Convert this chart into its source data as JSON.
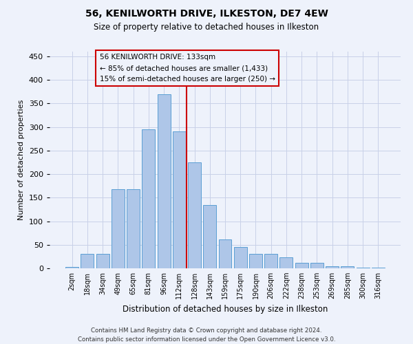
{
  "title": "56, KENILWORTH DRIVE, ILKESTON, DE7 4EW",
  "subtitle": "Size of property relative to detached houses in Ilkeston",
  "xlabel": "Distribution of detached houses by size in Ilkeston",
  "ylabel": "Number of detached properties",
  "footer_line1": "Contains HM Land Registry data © Crown copyright and database right 2024.",
  "footer_line2": "Contains public sector information licensed under the Open Government Licence v3.0.",
  "categories": [
    "2sqm",
    "18sqm",
    "34sqm",
    "49sqm",
    "65sqm",
    "81sqm",
    "96sqm",
    "112sqm",
    "128sqm",
    "143sqm",
    "159sqm",
    "175sqm",
    "190sqm",
    "206sqm",
    "222sqm",
    "238sqm",
    "253sqm",
    "269sqm",
    "285sqm",
    "300sqm",
    "316sqm"
  ],
  "values": [
    3,
    30,
    30,
    168,
    168,
    295,
    370,
    290,
    225,
    135,
    62,
    45,
    30,
    30,
    23,
    11,
    12,
    5,
    5,
    2,
    1
  ],
  "bar_color": "#aec6e8",
  "bar_edge_color": "#5a9fd4",
  "grid_color": "#c8d0e8",
  "background_color": "#eef2fb",
  "vline_color": "#cc0000",
  "annotation_text": "56 KENILWORTH DRIVE: 133sqm\n← 85% of detached houses are smaller (1,433)\n15% of semi-detached houses are larger (250) →",
  "annotation_box_color": "#cc0000",
  "ylim": [
    0,
    460
  ],
  "yticks": [
    0,
    50,
    100,
    150,
    200,
    250,
    300,
    350,
    400,
    450
  ]
}
